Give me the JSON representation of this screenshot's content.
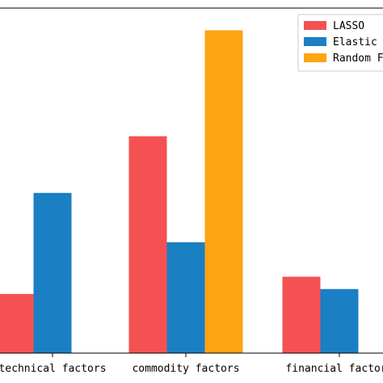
{
  "chart_data": {
    "type": "bar",
    "categories": [
      "technical factors",
      "commodity factors",
      "financial factors"
    ],
    "series": [
      {
        "name": "LASSO",
        "color": "#f55152",
        "values": [
          2.4,
          8.8,
          3.1
        ]
      },
      {
        "name": "Elastic Net",
        "color": "#1a7fc3",
        "values": [
          6.5,
          4.5,
          2.6
        ]
      },
      {
        "name": "Random Forest",
        "color": "#ffa412",
        "values": [
          0,
          13.1,
          0
        ]
      }
    ],
    "ylim": [
      0,
      14
    ],
    "xlabel": "",
    "ylabel": "",
    "title": "",
    "legend": {
      "position": "top-right"
    },
    "grid": false
  }
}
